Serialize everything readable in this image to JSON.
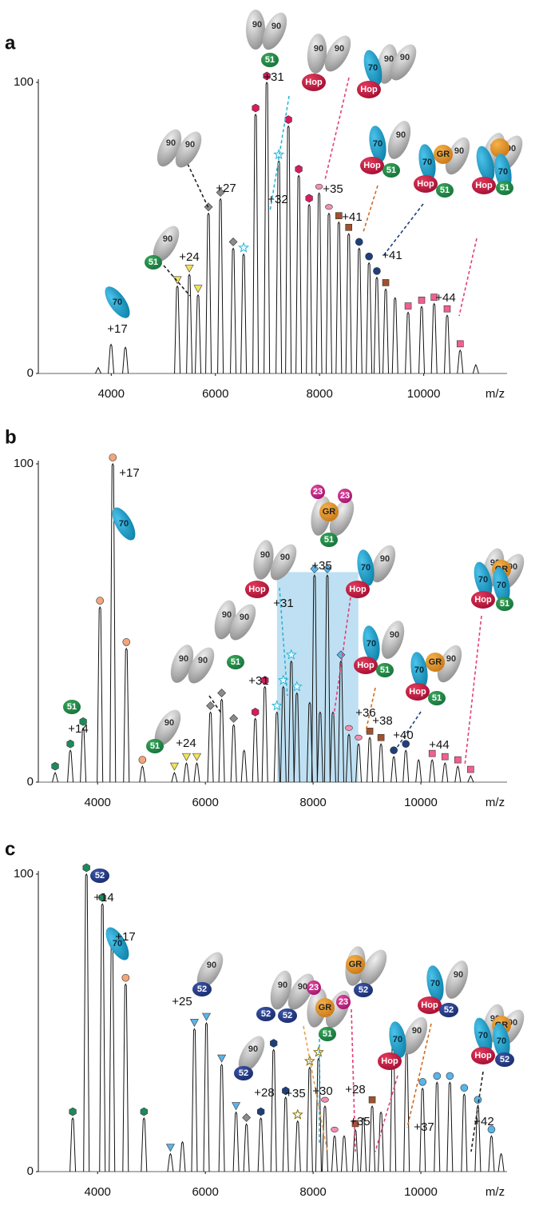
{
  "chart_data": [
    {
      "type": "stem",
      "panel": "a",
      "xlabel": "m/z",
      "color": "#111111",
      "x": [
        3750,
        3996,
        4272,
        5269,
        5499,
        5667,
        5867,
        6097,
        6342,
        6542,
        6772,
        6987,
        7217,
        7401,
        7600,
        7800,
        7990,
        8180,
        8370,
        8560,
        8760,
        8950,
        9100,
        9270,
        9450,
        9700,
        9960,
        10200,
        10450,
        10700,
        11000
      ],
      "values": [
        2,
        10,
        9,
        30,
        34,
        27,
        55,
        60,
        43,
        41,
        89,
        100,
        73,
        85,
        68,
        58,
        62,
        55,
        52,
        48,
        43,
        38,
        33,
        29,
        26,
        21,
        23,
        24,
        20,
        8,
        3
      ],
      "xlim": [
        2600,
        11600
      ],
      "xticks": [
        4000,
        6000,
        8000,
        10000
      ],
      "ylim": [
        0,
        100
      ],
      "yticks": [
        0,
        100
      ],
      "annotations": [
        "+17",
        "+24",
        "+27",
        "+31",
        "+32",
        "+35",
        "+41",
        "+41",
        "+44"
      ],
      "complexes": [
        [
          "70"
        ],
        [
          "90",
          "51"
        ],
        [
          "90",
          "90"
        ],
        [
          "90",
          "90",
          "51"
        ],
        [
          "90",
          "90",
          "Hop"
        ],
        [
          "70",
          "90",
          "90",
          "Hop"
        ],
        [
          "70",
          "90",
          "Hop",
          "51"
        ],
        [
          "70",
          "GR",
          "90",
          "Hop",
          "51"
        ],
        [
          "90",
          "90",
          "70",
          "Hop",
          "51"
        ]
      ]
    },
    {
      "type": "stem",
      "panel": "b",
      "xlabel": "m/z",
      "color": "#111111",
      "x": [
        3212,
        3494,
        3732,
        4044,
        4282,
        4534,
        4832,
        5426,
        5649,
        5842,
        6095,
        6303,
        6526,
        6719,
        6927,
        7105,
        7328,
        7447,
        7595,
        7699,
        7937,
        8026,
        8130,
        8264,
        8368,
        8517,
        8665,
        8844,
        9052,
        9260,
        9498,
        9721,
        9958,
        10210,
        10448,
        10686,
        10924
      ],
      "values": [
        3,
        10,
        17,
        55,
        100,
        42,
        5,
        3,
        6,
        6,
        22,
        26,
        18,
        10,
        20,
        30,
        22,
        30,
        38,
        28,
        25,
        65,
        22,
        65,
        22,
        38,
        15,
        12,
        14,
        12,
        8,
        10,
        7,
        7,
        6,
        5,
        2
      ],
      "xlim": [
        2900,
        11600
      ],
      "xticks": [
        4000,
        6000,
        8000,
        10000
      ],
      "ylim": [
        0,
        100
      ],
      "yticks": [
        0,
        100
      ],
      "highlight": {
        "x": [
          7330,
          8840
        ],
        "y": [
          0,
          66
        ],
        "color": "#bfe0f2"
      },
      "annotations": [
        "+17",
        "+14",
        "+24",
        "+31",
        "+31",
        "+35",
        "+36",
        "+38",
        "+40",
        "+44"
      ],
      "complexes": [
        [
          "51"
        ],
        [
          "70"
        ],
        [
          "90",
          "51"
        ],
        [
          "90",
          "90"
        ],
        [
          "90",
          "90",
          "51"
        ],
        [
          "90",
          "90",
          "Hop"
        ],
        [
          "23",
          "23",
          "GR",
          "51"
        ],
        [
          "70",
          "90",
          "Hop"
        ],
        [
          "70",
          "90",
          "Hop",
          "51"
        ],
        [
          "70",
          "GR",
          "90",
          "Hop",
          "51"
        ],
        [
          "90",
          "90",
          "70",
          "GR",
          "70",
          "Hop",
          "51"
        ]
      ]
    },
    {
      "type": "stem",
      "panel": "c",
      "xlabel": "m/z",
      "color": "#111111",
      "x": [
        3539,
        3792,
        4089,
        4267,
        4520,
        4861,
        5352,
        5575,
        5797,
        6020,
        6303,
        6570,
        6763,
        7030,
        7268,
        7491,
        7714,
        7937,
        8101,
        8220,
        8398,
        8576,
        8784,
        8933,
        9096,
        9260,
        9483,
        9735,
        10032,
        10300,
        10538,
        10805,
        11058,
        11310,
        11490
      ],
      "values": [
        18,
        100,
        90,
        78,
        63,
        18,
        6,
        10,
        48,
        50,
        36,
        20,
        16,
        18,
        41,
        25,
        17,
        35,
        38,
        22,
        12,
        12,
        14,
        18,
        22,
        20,
        45,
        40,
        28,
        30,
        30,
        26,
        22,
        12,
        6
      ],
      "xlim": [
        2900,
        11600
      ],
      "xticks": [
        4000,
        6000,
        8000,
        10000
      ],
      "ylim": [
        0,
        100
      ],
      "yticks": [
        0,
        100
      ],
      "annotations": [
        "+14",
        "+17",
        "+25",
        "+28",
        "+35",
        "+30",
        "+28",
        "+35",
        "+37",
        "+42"
      ],
      "complexes": [
        [
          "52"
        ],
        [
          "70"
        ],
        [
          "90",
          "52"
        ],
        [
          "90",
          "52"
        ],
        [
          "90",
          "90",
          "52",
          "52"
        ],
        [
          "23",
          "GR",
          "23",
          "51"
        ],
        [
          "90",
          "GR",
          "52"
        ],
        [
          "70",
          "90",
          "Hop"
        ],
        [
          "70",
          "90",
          "Hop",
          "52"
        ],
        [
          "90",
          "90",
          "70",
          "GR",
          "70",
          "Hop",
          "52"
        ]
      ]
    }
  ]
}
